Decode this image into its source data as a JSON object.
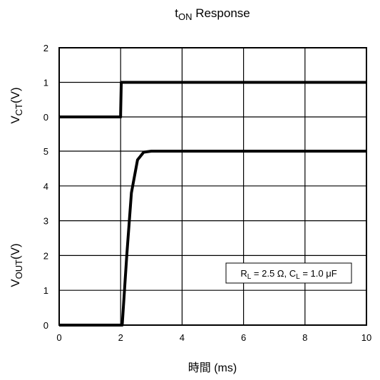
{
  "chart_data": {
    "type": "line",
    "title_main": "t",
    "title_sub": "ON",
    "title_rest": " Response",
    "xlabel": "時間 (ms)",
    "x_ticks": [
      "0",
      "2",
      "4",
      "6",
      "8",
      "10"
    ],
    "xlim": [
      0,
      10
    ],
    "grid": true,
    "panels": [
      {
        "ylabel_main": "V",
        "ylabel_sub": "CT",
        "ylabel_rest": "(V)",
        "ylim": [
          0,
          2
        ],
        "y_ticks": [
          "0",
          "1",
          "2"
        ],
        "series": [
          {
            "x": [
              0,
              2.0,
              2.0,
              2.02,
              10
            ],
            "y": [
              0,
              0,
              0.1,
              1.0,
              1.0
            ]
          }
        ]
      },
      {
        "ylabel_main": "V",
        "ylabel_sub": "OUT",
        "ylabel_rest": "(V)",
        "ylim": [
          0,
          5
        ],
        "y_ticks": [
          "0",
          "1",
          "2",
          "3",
          "4",
          "5"
        ],
        "series": [
          {
            "x": [
              0,
              2.05,
              2.2,
              2.35,
              2.55,
              2.75,
              3.0,
              10
            ],
            "y": [
              0,
              0,
              2.0,
              3.8,
              4.75,
              4.97,
              5.0,
              5.0
            ]
          }
        ]
      }
    ],
    "annotation": {
      "r_main": "R",
      "r_sub": "L",
      "r_value": " = 2.5 Ω, C",
      "c_sub": "L",
      "c_value": " = 1.0 μF"
    }
  }
}
